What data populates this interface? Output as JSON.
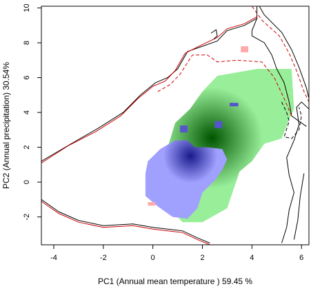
{
  "chart_data": {
    "type": "heatmap",
    "title": "",
    "xlabel": "PC1 (Annual mean temperature ) 59.45 %",
    "ylabel": "PC2 (Annual precipitation) 30.54%",
    "xlim": [
      -4.5,
      6.3
    ],
    "ylim": [
      -3.6,
      10.1
    ],
    "xticks": [
      -4,
      -2,
      0,
      2,
      4,
      6
    ],
    "yticks": [
      -2,
      0,
      2,
      4,
      6,
      8,
      10
    ],
    "grid": false,
    "legend": "none",
    "layers": [
      {
        "name": "",
        "color": "#99ee99",
        "peak_color": "#005500",
        "polygon": [
          [
            0.35,
            -1.2
          ],
          [
            0.6,
            2.0
          ],
          [
            0.9,
            3.4
          ],
          [
            1.5,
            4.2
          ],
          [
            2.0,
            5.2
          ],
          [
            2.6,
            6.1
          ],
          [
            3.0,
            6.2
          ],
          [
            4.2,
            6.5
          ],
          [
            5.6,
            6.5
          ],
          [
            5.7,
            4.2
          ],
          [
            5.5,
            3.6
          ],
          [
            5.2,
            2.5
          ],
          [
            4.5,
            2.2
          ],
          [
            4.0,
            1.2
          ],
          [
            3.5,
            0.6
          ],
          [
            3.0,
            -1.5
          ],
          [
            2.0,
            -2.3
          ],
          [
            1.2,
            -2.3
          ],
          [
            0.6,
            -1.4
          ]
        ]
      },
      {
        "name": "",
        "color": "#a0a0ff",
        "peak_color": "#1a1a8c",
        "polygon": [
          [
            -0.3,
            0.5
          ],
          [
            -0.2,
            1.2
          ],
          [
            0.3,
            1.9
          ],
          [
            0.9,
            2.4
          ],
          [
            1.4,
            2.4
          ],
          [
            1.7,
            2.0
          ],
          [
            2.2,
            2.0
          ],
          [
            2.8,
            1.9
          ],
          [
            3.0,
            1.3
          ],
          [
            2.8,
            0.7
          ],
          [
            2.5,
            0.1
          ],
          [
            2.0,
            -0.6
          ],
          [
            1.8,
            -1.5
          ],
          [
            1.4,
            -2.1
          ],
          [
            0.8,
            -2.0
          ],
          [
            0.2,
            -1.4
          ],
          [
            -0.3,
            -0.8
          ]
        ]
      },
      {
        "name": "",
        "color": "#ffaaaa",
        "polygon": [
          [
            3.55,
            7.8
          ],
          [
            3.85,
            7.8
          ],
          [
            3.85,
            7.45
          ],
          [
            3.55,
            7.45
          ]
        ]
      },
      {
        "name": "",
        "color": "#ffaaaa",
        "polygon": [
          [
            -0.2,
            -1.15
          ],
          [
            0.1,
            -1.15
          ],
          [
            0.1,
            -1.35
          ],
          [
            -0.2,
            -1.35
          ]
        ]
      },
      {
        "name": "",
        "color": "#5555cc",
        "polygon": [
          [
            3.1,
            4.55
          ],
          [
            3.45,
            4.55
          ],
          [
            3.45,
            4.35
          ],
          [
            3.1,
            4.35
          ]
        ]
      },
      {
        "name": "",
        "color": "#5555cc",
        "polygon": [
          [
            1.1,
            3.25
          ],
          [
            1.4,
            3.25
          ],
          [
            1.4,
            2.85
          ],
          [
            1.1,
            2.85
          ]
        ]
      },
      {
        "name": "",
        "color": "#5555cc",
        "polygon": [
          [
            2.5,
            3.5
          ],
          [
            2.8,
            3.5
          ],
          [
            2.8,
            3.1
          ],
          [
            2.5,
            3.1
          ]
        ]
      }
    ],
    "contours": [
      {
        "name": "",
        "color": "#000000",
        "dash": "solid",
        "points": [
          [
            6.2,
            3.2
          ],
          [
            5.8,
            3.6
          ],
          [
            5.6,
            3.8
          ],
          [
            5.5,
            4.6
          ],
          [
            5.3,
            5.7
          ],
          [
            5.0,
            6.5
          ],
          [
            4.8,
            7.3
          ],
          [
            4.5,
            8.0
          ],
          [
            4.0,
            8.4
          ],
          [
            4.0,
            8.7
          ],
          [
            4.2,
            9.4
          ],
          [
            4.2,
            10.1
          ]
        ]
      },
      {
        "name": "",
        "color": "#000000",
        "dash": "solid",
        "points": [
          [
            4.2,
            9.4
          ],
          [
            3.7,
            9.0
          ],
          [
            3.0,
            8.7
          ],
          [
            2.6,
            8.1
          ],
          [
            2.0,
            7.8
          ],
          [
            1.4,
            7.5
          ],
          [
            1.0,
            6.5
          ],
          [
            0.6,
            6.0
          ],
          [
            0.1,
            5.7
          ],
          [
            -0.5,
            5.0
          ],
          [
            -1.2,
            4.0
          ],
          [
            -2.2,
            3.1
          ],
          [
            -3.3,
            2.2
          ],
          [
            -4.5,
            1.2
          ]
        ]
      },
      {
        "name": "",
        "color": "#000000",
        "dash": "solid",
        "points": [
          [
            -4.5,
            -1.0
          ],
          [
            -3.8,
            -1.7
          ],
          [
            -3.0,
            -2.2
          ],
          [
            -2.0,
            -2.5
          ],
          [
            -0.8,
            -2.4
          ],
          [
            0.0,
            -2.6
          ],
          [
            1.2,
            -2.8
          ],
          [
            1.8,
            -3.2
          ],
          [
            2.3,
            -3.5
          ]
        ]
      },
      {
        "name": "",
        "color": "#000000",
        "dash": "solid",
        "points": [
          [
            4.3,
            10.1
          ],
          [
            4.5,
            9.6
          ],
          [
            5.2,
            8.6
          ],
          [
            5.6,
            7.6
          ],
          [
            5.9,
            6.6
          ],
          [
            6.2,
            5.4
          ],
          [
            6.3,
            4.8
          ]
        ]
      },
      {
        "name": "",
        "color": "#000000",
        "dash": "solid",
        "points": [
          [
            6.3,
            4.2
          ],
          [
            6.0,
            4.6
          ],
          [
            5.8,
            4.3
          ],
          [
            5.9,
            3.3
          ],
          [
            5.7,
            2.4
          ],
          [
            5.4,
            1.4
          ],
          [
            5.5,
            0.4
          ],
          [
            5.7,
            -0.6
          ],
          [
            5.5,
            -1.6
          ],
          [
            5.4,
            -2.6
          ],
          [
            5.2,
            -3.5
          ]
        ]
      },
      {
        "name": "",
        "color": "#cc0000",
        "dash": "solid",
        "points": [
          [
            4.2,
            9.5
          ],
          [
            3.7,
            9.1
          ],
          [
            3.0,
            8.8
          ],
          [
            2.6,
            8.3
          ],
          [
            2.0,
            7.9
          ],
          [
            1.3,
            7.4
          ],
          [
            0.9,
            6.4
          ],
          [
            0.5,
            5.8
          ],
          [
            0.0,
            5.5
          ],
          [
            -0.6,
            4.8
          ],
          [
            -1.3,
            3.8
          ],
          [
            -2.3,
            2.9
          ],
          [
            -3.4,
            2.1
          ],
          [
            -4.5,
            1.1
          ]
        ]
      },
      {
        "name": "",
        "color": "#cc0000",
        "dash": "solid",
        "points": [
          [
            -4.5,
            -1.1
          ],
          [
            -3.8,
            -1.8
          ],
          [
            -3.0,
            -2.3
          ],
          [
            -2.0,
            -2.6
          ],
          [
            -0.8,
            -2.5
          ],
          [
            0.0,
            -2.7
          ],
          [
            1.2,
            -2.9
          ],
          [
            1.8,
            -3.3
          ],
          [
            2.3,
            -3.6
          ]
        ]
      },
      {
        "name": "",
        "color": "#cc0000",
        "dash": "dashed",
        "points": [
          [
            4.0,
            10.1
          ],
          [
            4.4,
            9.3
          ],
          [
            5.1,
            8.4
          ],
          [
            5.5,
            7.4
          ],
          [
            5.8,
            6.4
          ],
          [
            6.1,
            5.2
          ],
          [
            6.3,
            4.6
          ]
        ]
      },
      {
        "name": "",
        "color": "#cc0000",
        "dash": "dashed",
        "points": [
          [
            5.6,
            3.8
          ],
          [
            5.3,
            4.8
          ],
          [
            4.9,
            6.0
          ],
          [
            4.4,
            6.9
          ],
          [
            3.4,
            7.0
          ],
          [
            2.6,
            6.9
          ],
          [
            2.2,
            7.3
          ],
          [
            1.6,
            7.3
          ],
          [
            1.1,
            6.2
          ],
          [
            0.7,
            5.6
          ],
          [
            0.2,
            5.2
          ]
        ]
      },
      {
        "name": "",
        "color": "#000000",
        "dash": "dashed",
        "points": [
          [
            5.2,
            4.6
          ],
          [
            5.4,
            4.0
          ],
          [
            5.5,
            3.5
          ],
          [
            5.3,
            2.6
          ],
          [
            5.6,
            2.5
          ],
          [
            5.9,
            3.0
          ],
          [
            6.0,
            3.8
          ],
          [
            5.9,
            4.3
          ]
        ]
      },
      {
        "name": "",
        "color": "#000000",
        "dash": "solid",
        "points": [
          [
            2.35,
            8.55
          ],
          [
            2.55,
            8.75
          ],
          [
            2.6,
            8.4
          ],
          [
            2.45,
            8.2
          ]
        ]
      },
      {
        "name": "",
        "color": "#000000",
        "dash": "solid",
        "points": [
          [
            5.7,
            -3.3
          ],
          [
            5.85,
            -2.2
          ],
          [
            5.95,
            -0.8
          ],
          [
            6.1,
            0.5
          ]
        ]
      }
    ]
  }
}
